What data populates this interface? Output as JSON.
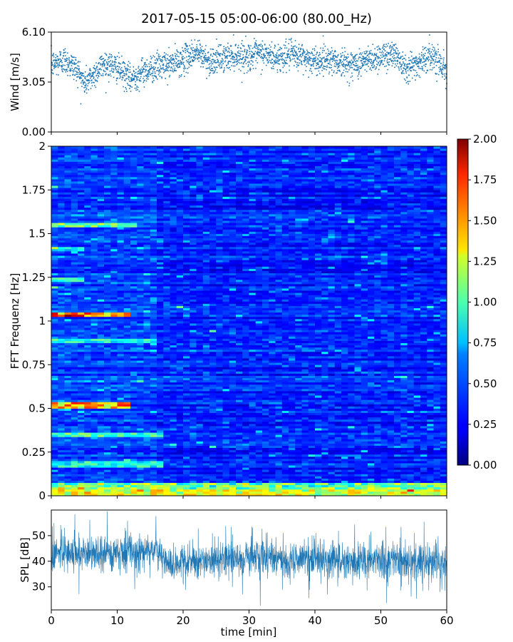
{
  "title": "2017-05-15 05:00-06:00 (80.00_Hz)",
  "chart_data": [
    {
      "type": "scatter",
      "panel": "wind",
      "ylabel": "Wind [m/s]",
      "xlim": [
        0,
        60
      ],
      "ylim": [
        0,
        6.1
      ],
      "yticks": [
        0.0,
        3.05,
        6.1
      ],
      "ytick_labels": [
        "0.00",
        "3.05",
        "6.10"
      ],
      "color": "#1f77b4",
      "profile": {
        "x": [
          0,
          2,
          4,
          5,
          6,
          8,
          10,
          12,
          14,
          16,
          18,
          20,
          22,
          24,
          26,
          28,
          30,
          32,
          34,
          36,
          38,
          40,
          42,
          44,
          46,
          48,
          50,
          52,
          54,
          56,
          58,
          60
        ],
        "mean": [
          4.1,
          4.4,
          3.8,
          3.0,
          3.3,
          4.2,
          3.9,
          3.2,
          3.7,
          4.0,
          4.1,
          4.4,
          4.9,
          4.3,
          4.5,
          4.7,
          4.6,
          4.8,
          4.5,
          4.7,
          4.6,
          4.3,
          4.5,
          4.2,
          4.1,
          4.4,
          4.6,
          4.8,
          3.9,
          4.3,
          4.7,
          3.7
        ]
      }
    },
    {
      "type": "heatmap",
      "panel": "spectrogram",
      "ylabel": "FFT Frequenz [Hz]",
      "xlim": [
        0,
        60
      ],
      "ylim": [
        0,
        2
      ],
      "yticks": [
        0,
        0.25,
        0.5,
        0.75,
        1,
        1.25,
        1.5,
        1.75,
        2
      ],
      "ytick_labels": [
        "0",
        "0.25",
        "0.5",
        "0.75",
        "1",
        "1.25",
        "1.5",
        "1.75",
        "2"
      ],
      "colormap": "jet",
      "clim": [
        0,
        2
      ],
      "colorbar_ticks": [
        "0.00",
        "0.25",
        "0.50",
        "0.75",
        "1.00",
        "1.25",
        "1.50",
        "1.75",
        "2.00"
      ],
      "features": [
        {
          "x": [
            0,
            13
          ],
          "freq": 1.55,
          "level": 1.1
        },
        {
          "x": [
            0,
            12
          ],
          "freq": 1.04,
          "level": 1.7
        },
        {
          "x": [
            0,
            12
          ],
          "freq": 0.52,
          "level": 1.6
        },
        {
          "x": [
            0,
            17
          ],
          "freq": 0.35,
          "level": 1.0
        },
        {
          "x": [
            0,
            16
          ],
          "freq": 0.89,
          "level": 0.9
        },
        {
          "x": [
            0,
            5
          ],
          "freq": 1.24,
          "level": 0.9
        },
        {
          "x": [
            0,
            5
          ],
          "freq": 1.41,
          "level": 0.8
        },
        {
          "x": [
            0,
            17
          ],
          "freq": 0.18,
          "level": 0.9
        },
        {
          "x": [
            0,
            60
          ],
          "freq": 0.02,
          "level": 1.3
        }
      ]
    },
    {
      "type": "line",
      "panel": "spl",
      "ylabel": "SPL [dB]",
      "xlabel": "time [min]",
      "xlim": [
        0,
        60
      ],
      "ylim": [
        21,
        60
      ],
      "yticks": [
        30,
        40,
        50
      ],
      "xticks": [
        0,
        10,
        20,
        30,
        40,
        50,
        60
      ],
      "color": "#1f77b4",
      "profile": {
        "x": [
          0,
          5,
          10,
          15,
          16.5,
          17.5,
          20,
          25,
          30,
          35,
          40,
          45,
          50,
          55,
          60
        ],
        "mean": [
          43,
          43,
          43,
          44,
          44,
          38,
          40,
          40,
          41,
          41,
          41,
          40,
          41,
          40,
          40
        ]
      }
    }
  ]
}
